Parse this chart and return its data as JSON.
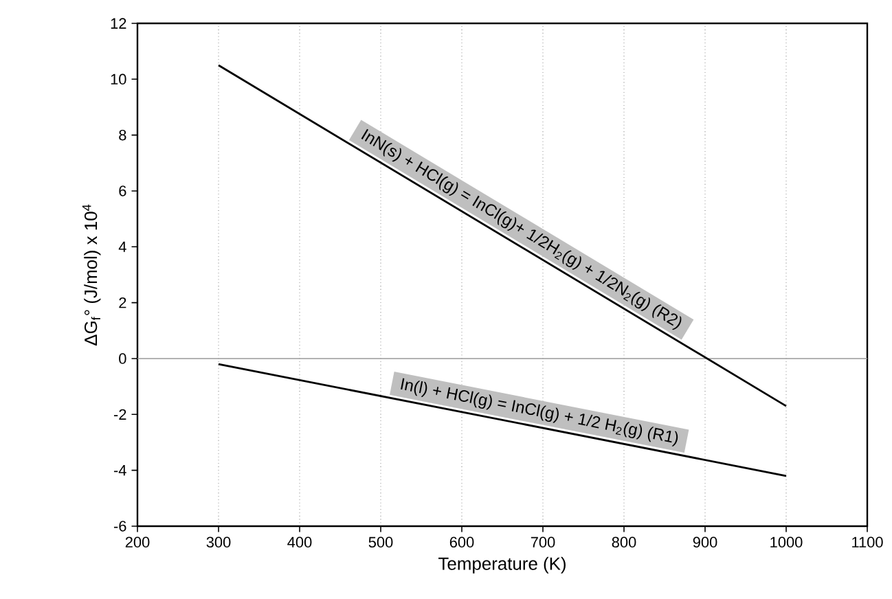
{
  "chart_data": {
    "type": "line",
    "xlabel": "Temperature (K)",
    "ylabel": "ΔG$_{f}$° (J/mol) x 10$^{4}$",
    "x": [
      300,
      1000
    ],
    "series": [
      {
        "color": "#000000",
        "values": [
          10.5,
          -1.7
        ]
      },
      {
        "color": "#000000",
        "values": [
          -0.2,
          -4.2
        ]
      }
    ],
    "xlim": [
      200,
      1100
    ],
    "xticks": [
      200,
      300,
      400,
      500,
      600,
      700,
      800,
      900,
      1000,
      1100
    ],
    "ylim": [
      -6,
      12
    ],
    "yticks": [
      -6,
      -4,
      -2,
      0,
      2,
      4,
      6,
      8,
      10,
      12
    ],
    "grid": "x",
    "marker": "none",
    "line_style": "solid",
    "ref_lines": [
      {
        "axis": "y",
        "value": 0,
        "color": "#999999"
      }
    ],
    "annotations": [
      "InN(s) + HCl(g) = InCl(g)+ 1/2H$_{2}$(g) + 1/2N$_{2}$(g) (R2)",
      "In(l) + HCl(g) = InCl(g) + 1/2 H$_{2}$(g) (R1)"
    ]
  }
}
